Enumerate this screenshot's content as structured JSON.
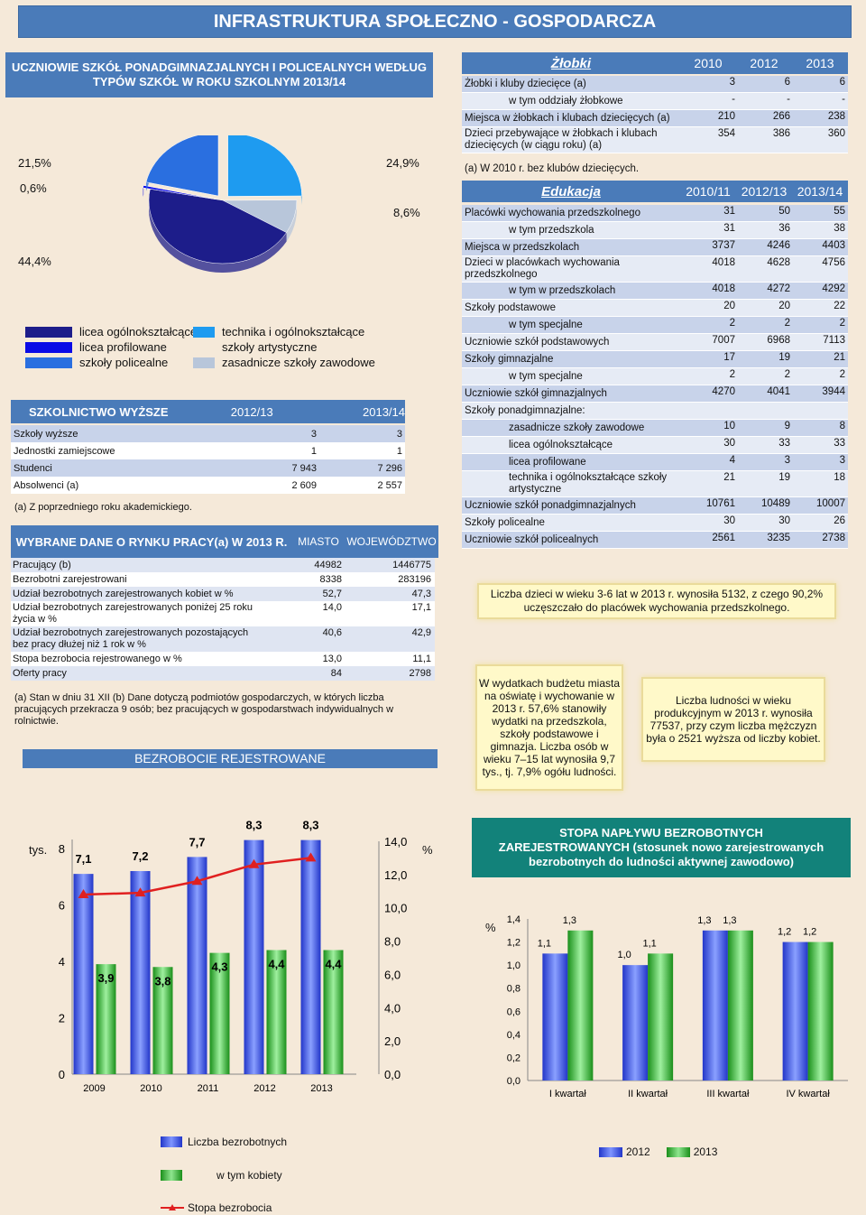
{
  "page_title": "INFRASTRUKTURA SPOŁECZNO - GOSPODARCZA",
  "pie_section": {
    "title": "UCZNIOWIE SZKÓŁ PONADGIMNAZJALNYCH I POLICEALNYCH WEDŁUG TYPÓW SZKÓŁ W ROKU SZKOLNYM 2013/14",
    "chart_data": {
      "type": "pie",
      "slices": [
        {
          "name": "licea ogólnokształcące",
          "value": 44.4,
          "label": "44,4%",
          "color": "#1d1d8a"
        },
        {
          "name": "licea profilowane",
          "value": 0.6,
          "label": "0,6%",
          "color": "#0a0ae6"
        },
        {
          "name": "szkoły policealne",
          "value": 21.5,
          "label": "21,5%",
          "color": "#2a6fe0"
        },
        {
          "name": "technika i ogólnokształcące szkoły artystyczne",
          "value": 24.9,
          "label": "24,9%",
          "color": "#1e9bf0"
        },
        {
          "name": "zasadnicze szkoły zawodowe",
          "value": 8.6,
          "label": "8,6%",
          "color": "#b8c6da"
        }
      ]
    },
    "legend_left": [
      "licea ogólnokształcące",
      "licea profilowane",
      "szkoły policealne"
    ],
    "legend_right": [
      "technika i ogólnokształcące",
      "szkoły artystyczne",
      "zasadnicze szkoły zawodowe"
    ]
  },
  "higher_ed": {
    "title": "SZKOLNICTWO WYŻSZE",
    "col1": "2012/13",
    "col2": "2013/14",
    "rows": [
      {
        "label": "Szkoły wyższe",
        "v1": "3",
        "v2": "3"
      },
      {
        "label": "Jednostki zamiejscowe",
        "v1": "1",
        "v2": "1"
      },
      {
        "label": "Studenci",
        "v1": "7 943",
        "v2": "7 296"
      },
      {
        "label": "Absolwenci (a)",
        "v1": "2 609",
        "v2": "2 557"
      }
    ],
    "note": "(a) Z poprzedniego roku akademickiego."
  },
  "labour": {
    "title": "WYBRANE DANE O RYNKU PRACY(a) W 2013 R.",
    "col1": "MIASTO",
    "col2": "WOJEWÓDZTWO",
    "rows": [
      {
        "label": "Pracujący (b)",
        "v1": "44982",
        "v2": "1446775"
      },
      {
        "label": "Bezrobotni zarejestrowani",
        "v1": "8338",
        "v2": "283196"
      },
      {
        "label": "Udział bezrobotnych zarejestrowanych kobiet w %",
        "v1": "52,7",
        "v2": "47,3"
      },
      {
        "label": "Udział bezrobotnych zarejestrowanych poniżej 25 roku życia w %",
        "v1": "14,0",
        "v2": "17,1"
      },
      {
        "label": "Udział bezrobotnych zarejestrowanych pozostających bez pracy dłużej niż 1 rok w %",
        "v1": "40,6",
        "v2": "42,9"
      },
      {
        "label": "Stopa bezrobocia rejestrowanego w %",
        "v1": "13,0",
        "v2": "11,1"
      },
      {
        "label": "Oferty pracy",
        "v1": "84",
        "v2": "2798"
      }
    ],
    "note": "(a) Stan w dniu 31 XII (b) Dane dotyczą podmiotów gospodarczych, w których liczba pracujących przekracza 9 osób; bez pracujących w gospodarstwach indywidualnych w rolnictwie."
  },
  "unemployment_chart": {
    "title": "BEZROBOCIE REJESTROWANE",
    "left_unit": "tys.",
    "right_unit": "%",
    "chart_data": {
      "type": "bar",
      "categories": [
        "2009",
        "2010",
        "2011",
        "2012",
        "2013"
      ],
      "series": [
        {
          "name": "Liczba bezrobotnych",
          "values": [
            7.1,
            7.2,
            7.7,
            8.3,
            8.3
          ],
          "labels": [
            "7,1",
            "7,2",
            "7,7",
            "8,3",
            "8,3"
          ],
          "color": "#3a58e8"
        },
        {
          "name": "w tym kobiety",
          "values": [
            3.9,
            3.8,
            4.3,
            4.4,
            4.4
          ],
          "labels": [
            "3,9",
            "3,8",
            "4,3",
            "4,4",
            "4,4"
          ],
          "color": "#34b334"
        },
        {
          "name": "Stopa bezrobocia",
          "type": "line",
          "axis": "right",
          "values": [
            10.8,
            10.9,
            11.6,
            12.6,
            13.0
          ],
          "color": "#e02020"
        }
      ],
      "y_left_ticks": [
        "0",
        "2",
        "4",
        "6",
        "8"
      ],
      "y_left_lim": [
        0,
        8
      ],
      "y_right_ticks": [
        "0,0",
        "2,0",
        "4,0",
        "6,0",
        "8,0",
        "10,0",
        "12,0",
        "14,0"
      ],
      "y_right_lim": [
        0,
        14
      ]
    }
  },
  "zlobki": {
    "title": "Żłobki",
    "years": [
      "2010",
      "2012",
      "2013"
    ],
    "rows": [
      {
        "label": "Żłobki i kluby dziecięce (a)",
        "v": [
          "3",
          "6",
          "6"
        ],
        "indent": false
      },
      {
        "label": "w tym oddziały żłobkowe",
        "v": [
          "-",
          "-",
          "-"
        ],
        "indent": true
      },
      {
        "label": "Miejsca w żłobkach i klubach dziecięcych (a)",
        "v": [
          "210",
          "266",
          "238"
        ],
        "indent": false
      },
      {
        "label": "Dzieci przebywające w żłobkach i klubach dziecięcych (w ciągu roku) (a)",
        "v": [
          "354",
          "386",
          "360"
        ],
        "indent": false
      }
    ],
    "note": "(a) W 2010 r. bez klubów dziecięcych."
  },
  "edukacja": {
    "title": "Edukacja",
    "years": [
      "2010/11",
      "2012/13",
      "2013/14"
    ],
    "rows": [
      {
        "label": "Placówki wychowania przedszkolnego",
        "v": [
          "31",
          "50",
          "55"
        ],
        "indent": false
      },
      {
        "label": "w tym przedszkola",
        "v": [
          "31",
          "36",
          "38"
        ],
        "indent": true
      },
      {
        "label": "Miejsca w przedszkolach",
        "v": [
          "3737",
          "4246",
          "4403"
        ],
        "indent": false
      },
      {
        "label": "Dzieci w placówkach wychowania przedszkolnego",
        "v": [
          "4018",
          "4628",
          "4756"
        ],
        "indent": false
      },
      {
        "label": "w tym w przedszkolach",
        "v": [
          "4018",
          "4272",
          "4292"
        ],
        "indent": true
      },
      {
        "label": "Szkoły podstawowe",
        "v": [
          "20",
          "20",
          "22"
        ],
        "indent": false
      },
      {
        "label": "w tym specjalne",
        "v": [
          "2",
          "2",
          "2"
        ],
        "indent": true
      },
      {
        "label": "Uczniowie szkół podstawowych",
        "v": [
          "7007",
          "6968",
          "7113"
        ],
        "indent": false
      },
      {
        "label": "Szkoły gimnazjalne",
        "v": [
          "17",
          "19",
          "21"
        ],
        "indent": false
      },
      {
        "label": "w tym specjalne",
        "v": [
          "2",
          "2",
          "2"
        ],
        "indent": true
      },
      {
        "label": "Uczniowie szkół gimnazjalnych",
        "v": [
          "4270",
          "4041",
          "3944"
        ],
        "indent": false
      },
      {
        "label": "Szkoły ponadgimnazjalne:",
        "v": [
          "",
          "",
          ""
        ],
        "indent": false
      },
      {
        "label": "zasadnicze szkoły zawodowe",
        "v": [
          "10",
          "9",
          "8"
        ],
        "indent": true
      },
      {
        "label": "licea ogólnokształcące",
        "v": [
          "30",
          "33",
          "33"
        ],
        "indent": true
      },
      {
        "label": "licea profilowane",
        "v": [
          "4",
          "3",
          "3"
        ],
        "indent": true
      },
      {
        "label": "technika i ogólnokształcące szkoły artystyczne",
        "v": [
          "21",
          "19",
          "18"
        ],
        "indent": true
      },
      {
        "label": "Uczniowie szkół ponadgimnazjalnych",
        "v": [
          "10761",
          "10489",
          "10007"
        ],
        "indent": false
      },
      {
        "label": "Szkoły policealne",
        "v": [
          "30",
          "30",
          "26"
        ],
        "indent": false
      },
      {
        "label": "Uczniowie szkół policealnych",
        "v": [
          "2561",
          "3235",
          "2738"
        ],
        "indent": false
      }
    ]
  },
  "notes": {
    "children": "Liczba dzieci w wieku 3-6 lat w 2013 r. wynosiła 5132, z czego 90,2% uczęszczało do placówek wychowania przedszkolnego.",
    "budget": "W wydatkach budżetu miasta na oświatę i wychowanie w 2013 r. 57,6% stanowiły wydatki na przedszkola, szkoły podstawowe i gimnazja. Liczba osób w wieku 7–15 lat wynosiła 9,7 tys., tj. 7,9% ogółu ludności.",
    "population": "Liczba ludności w wieku produkcyjnym w 2013 r. wynosiła 77537, przy czym liczba mężczyzn była o 2521 wyższa od liczby kobiet."
  },
  "inflow_chart": {
    "title": "STOPA NAPŁYWU BEZROBOTNYCH ZAREJESTROWANYCH (stosunek nowo zarejestrowanych bezrobotnych do ludności aktywnej zawodowo)",
    "unit": "%",
    "chart_data": {
      "type": "bar",
      "categories": [
        "I kwartał",
        "II kwartał",
        "III kwartał",
        "IV kwartał"
      ],
      "series": [
        {
          "name": "2012",
          "values": [
            1.1,
            1.0,
            1.3,
            1.2
          ],
          "labels": [
            "1,1",
            "1,0",
            "1,3",
            "1,2"
          ],
          "color": "#3a58e8"
        },
        {
          "name": "2013",
          "values": [
            1.3,
            1.1,
            1.3,
            1.2
          ],
          "labels": [
            "1,3",
            "1,1",
            "1,3",
            "1,2"
          ],
          "color": "#34b334"
        }
      ],
      "y_ticks": [
        "0,0",
        "0,2",
        "0,4",
        "0,6",
        "0,8",
        "1,0",
        "1,2",
        "1,4"
      ],
      "ylim": [
        0,
        1.4
      ]
    }
  }
}
